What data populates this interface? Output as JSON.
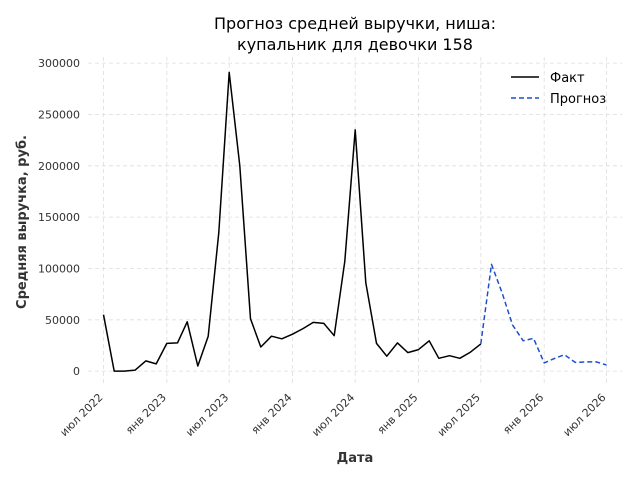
{
  "chart_data": {
    "type": "line",
    "title_lines": [
      "Прогноз средней выручки, ниша:",
      "купальник для девочки 158"
    ],
    "xlabel": "Дата",
    "ylabel": "Средняя выручка, руб.",
    "x_ticks": [
      "2022-07-01",
      "2023-01-01",
      "2023-07-01",
      "2024-01-01",
      "2024-07-01",
      "2025-01-01",
      "2025-07-01",
      "2026-01-01",
      "2026-07-01"
    ],
    "x_tick_labels": [
      "июл 2022",
      "янв 2023",
      "июл 2023",
      "янв 2024",
      "июл 2024",
      "янв 2025",
      "июл 2025",
      "янв 2026",
      "июл 2026"
    ],
    "y_ticks": [
      0,
      50000,
      100000,
      150000,
      200000,
      250000,
      300000
    ],
    "y_tick_labels": [
      "0",
      "50000",
      "100000",
      "150000",
      "200000",
      "250000",
      "300000"
    ],
    "xlim": [
      "2022-05-17",
      "2026-08-15"
    ],
    "ylim": [
      -14500,
      306000
    ],
    "grid": true,
    "legend_position": "top-right",
    "series": [
      {
        "name": "Факт",
        "color": "#000000",
        "style": "solid",
        "x": [
          "2022-07-01",
          "2022-08-01",
          "2022-09-01",
          "2022-10-01",
          "2022-11-01",
          "2022-12-01",
          "2023-01-01",
          "2023-02-01",
          "2023-03-01",
          "2023-04-01",
          "2023-05-01",
          "2023-06-01",
          "2023-07-01",
          "2023-08-01",
          "2023-09-01",
          "2023-10-01",
          "2023-11-01",
          "2023-12-01",
          "2024-01-01",
          "2024-02-01",
          "2024-03-01",
          "2024-04-01",
          "2024-05-01",
          "2024-06-01",
          "2024-07-01",
          "2024-08-01",
          "2024-09-01",
          "2024-10-01",
          "2024-11-01",
          "2024-12-01",
          "2025-01-01",
          "2025-02-01",
          "2025-03-01",
          "2025-04-01",
          "2025-05-01",
          "2025-06-01",
          "2025-07-01"
        ],
        "y": [
          55000,
          0,
          0,
          1000,
          10000,
          7000,
          27000,
          27500,
          48000,
          5000,
          34000,
          135000,
          291000,
          200000,
          51000,
          23500,
          34000,
          31500,
          36000,
          41500,
          47500,
          46500,
          34500,
          107000,
          235000,
          86000,
          27000,
          14500,
          27500,
          18000,
          21000,
          29500,
          12500,
          15000,
          12500,
          18500,
          26500
        ]
      },
      {
        "name": "Прогноз",
        "color": "#1f4fcf",
        "style": "dashed",
        "x": [
          "2025-07-01",
          "2025-08-01",
          "2025-09-01",
          "2025-10-01",
          "2025-11-01",
          "2025-12-01",
          "2026-01-01",
          "2026-02-01",
          "2026-03-01",
          "2026-04-01",
          "2026-05-01",
          "2026-06-01",
          "2026-07-01"
        ],
        "y": [
          26500,
          104000,
          76000,
          45000,
          29500,
          32000,
          8000,
          12500,
          16000,
          8500,
          9000,
          9000,
          6000
        ]
      }
    ]
  }
}
